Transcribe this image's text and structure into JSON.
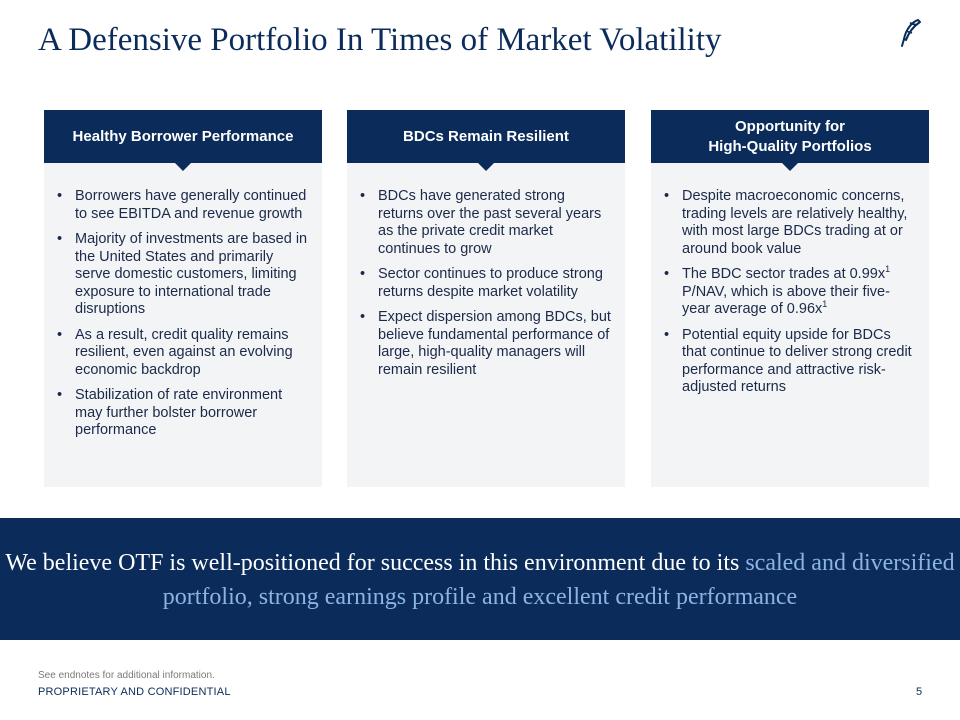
{
  "slide": {
    "title": "A Defensive Portfolio In Times of Market Volatility",
    "logo_icon": "quill-pen-icon"
  },
  "cards": [
    {
      "header": "Healthy Borrower Performance",
      "bullets": [
        "Borrowers have generally continued to see EBITDA and revenue growth",
        "Majority of investments are based in the United States and primarily serve domestic customers, limiting exposure to international trade disruptions",
        "As a result, credit quality remains resilient, even against an evolving economic backdrop",
        "Stabilization of rate environment may further bolster borrower performance"
      ]
    },
    {
      "header": "BDCs Remain Resilient",
      "bullets": [
        "BDCs have generated strong returns over the past several years as the private credit market continues to grow",
        "Sector continues to produce strong returns despite market volatility",
        "Expect dispersion among BDCs, but believe fundamental performance of large, high-quality managers will remain resilient"
      ]
    },
    {
      "header_line1": "Opportunity for",
      "header_line2": "High-Quality Portfolios",
      "bullets": [
        "Despite macroeconomic concerns, trading levels are relatively healthy, with most large BDCs trading at or around book value"
      ],
      "bullet2_text": "The BDC sector trades at 0.99x",
      "bullet2_sup": "1",
      "bullet2_text2": " P/NAV, which is above their five-year average of 0.96x",
      "bullet2_sup2": "1",
      "bullet3": "Potential equity upside for BDCs that continue to deliver strong credit performance and attractive risk-adjusted returns"
    }
  ],
  "banner": {
    "text": "We believe OTF is well-positioned for success in this environment due to its ",
    "highlight": "scaled and diversified portfolio, strong earnings profile and excellent credit performance"
  },
  "footer": {
    "note": "See endnotes for additional information.",
    "confidential": "PROPRIETARY AND CONFIDENTIAL",
    "page_number": "5"
  },
  "colors": {
    "navy": "#0b2c5a",
    "highlight_blue": "#8cb3e6",
    "card_bg": "#f3f4f5"
  }
}
